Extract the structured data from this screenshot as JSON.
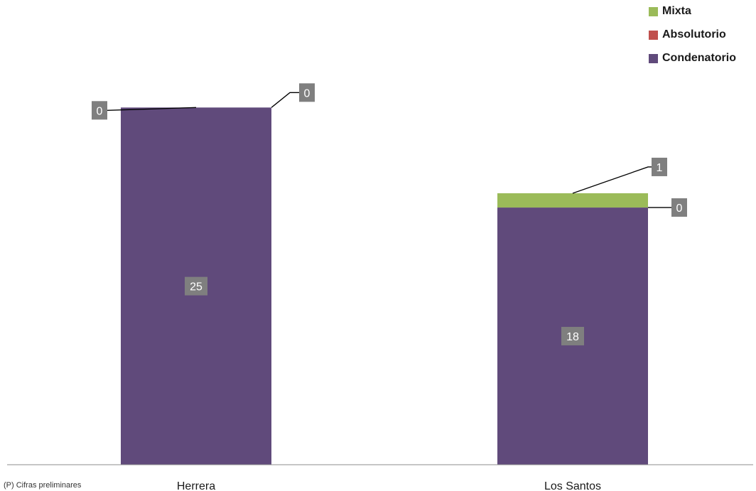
{
  "chart_data": {
    "type": "bar",
    "stacked": true,
    "title": "",
    "xlabel": "",
    "ylabel": "",
    "categories": [
      "Herrera",
      "Los Santos"
    ],
    "series": [
      {
        "name": "Condenatorio",
        "color": "#604A7B",
        "values": [
          25,
          18
        ],
        "labels": [
          "25",
          "18"
        ]
      },
      {
        "name": "Absolutorio",
        "color": "#C0504D",
        "values": [
          0,
          0
        ],
        "labels": [
          "0",
          "0"
        ]
      },
      {
        "name": "Mixta",
        "color": "#9BBB59",
        "values": [
          0,
          1
        ],
        "labels": [
          "0",
          "1"
        ]
      }
    ],
    "legend_order": [
      "Mixta",
      "Absolutorio",
      "Condenatorio"
    ],
    "legend_position": "top-right",
    "grid": false,
    "ylim": [
      0,
      32.5
    ]
  },
  "footnote": "(P) Cifras preliminares"
}
